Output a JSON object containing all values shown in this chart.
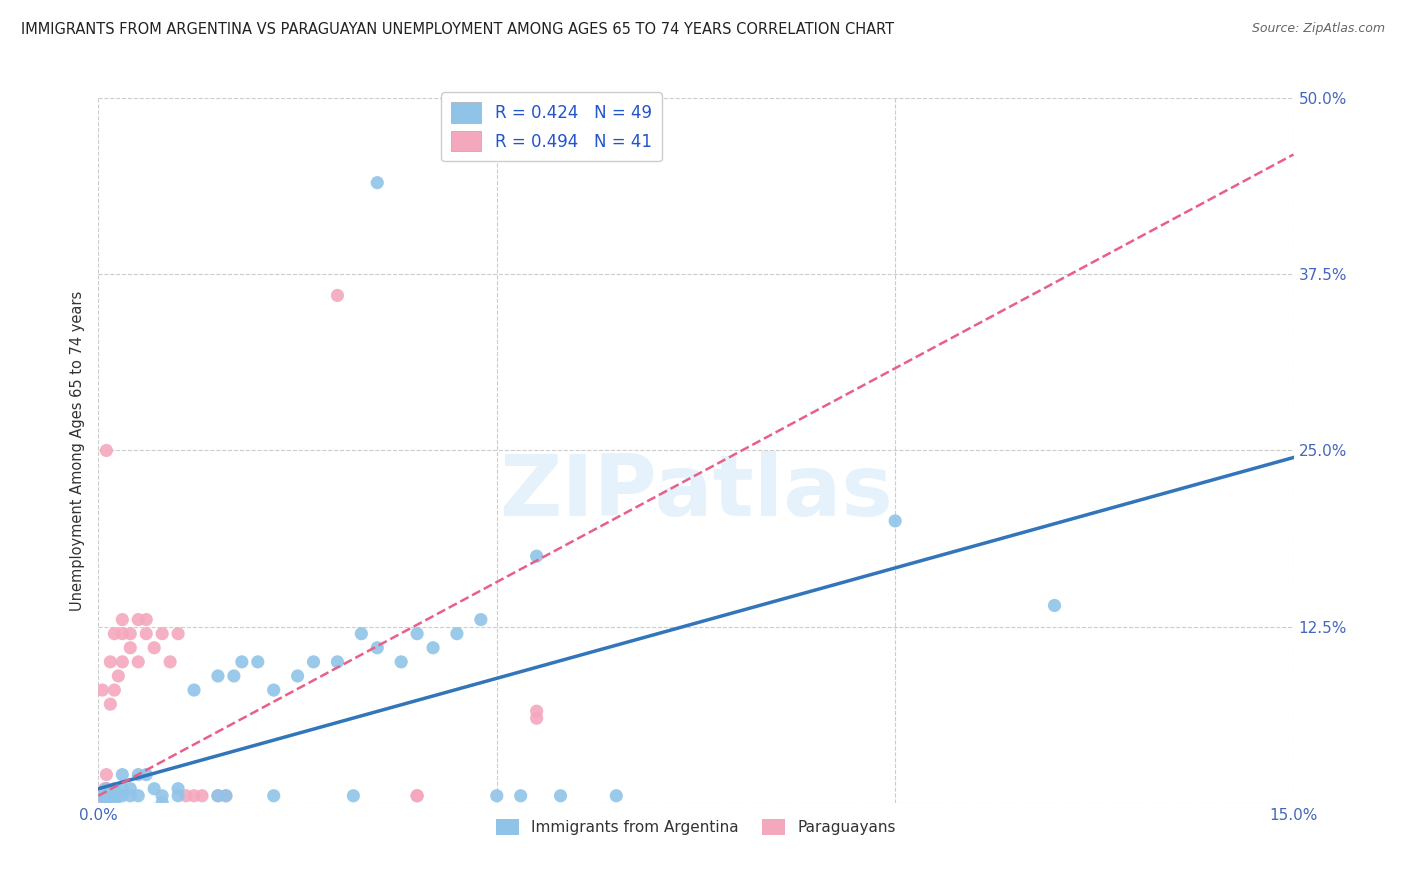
{
  "title": "IMMIGRANTS FROM ARGENTINA VS PARAGUAYAN UNEMPLOYMENT AMONG AGES 65 TO 74 YEARS CORRELATION CHART",
  "source": "Source: ZipAtlas.com",
  "ylabel": "Unemployment Among Ages 65 to 74 years",
  "xlabel_blue": "Immigrants from Argentina",
  "xlabel_pink": "Paraguayans",
  "xlim": [
    0.0,
    0.15
  ],
  "ylim": [
    0.0,
    0.5
  ],
  "xtick_positions": [
    0.0,
    0.05,
    0.1,
    0.15
  ],
  "xtick_labels": [
    "0.0%",
    "",
    "",
    "15.0%"
  ],
  "ytick_positions": [
    0.0,
    0.125,
    0.25,
    0.375,
    0.5
  ],
  "ytick_labels": [
    "",
    "12.5%",
    "25.0%",
    "37.5%",
    "50.0%"
  ],
  "legend_blue_label": "R = 0.424   N = 49",
  "legend_pink_label": "R = 0.494   N = 41",
  "blue_color": "#8fc4e8",
  "pink_color": "#f4a8be",
  "blue_line_color": "#3375bb",
  "pink_line_color": "#e8608a",
  "watermark": "ZIPatlas",
  "blue_line_x": [
    0.0,
    0.15
  ],
  "blue_line_y": [
    0.01,
    0.245
  ],
  "pink_line_x": [
    0.0,
    0.15
  ],
  "pink_line_y": [
    0.005,
    0.46
  ],
  "blue_points": [
    [
      0.0005,
      0.005
    ],
    [
      0.001,
      0.0
    ],
    [
      0.001,
      0.005
    ],
    [
      0.001,
      0.01
    ],
    [
      0.0015,
      0.005
    ],
    [
      0.002,
      0.0
    ],
    [
      0.002,
      0.01
    ],
    [
      0.0025,
      0.005
    ],
    [
      0.003,
      0.005
    ],
    [
      0.003,
      0.01
    ],
    [
      0.003,
      0.02
    ],
    [
      0.004,
      0.01
    ],
    [
      0.004,
      0.005
    ],
    [
      0.005,
      0.02
    ],
    [
      0.005,
      0.005
    ],
    [
      0.006,
      0.02
    ],
    [
      0.007,
      0.01
    ],
    [
      0.008,
      0.0
    ],
    [
      0.008,
      0.005
    ],
    [
      0.01,
      0.005
    ],
    [
      0.01,
      0.01
    ],
    [
      0.012,
      0.08
    ],
    [
      0.015,
      0.09
    ],
    [
      0.015,
      0.005
    ],
    [
      0.016,
      0.005
    ],
    [
      0.017,
      0.09
    ],
    [
      0.018,
      0.1
    ],
    [
      0.02,
      0.1
    ],
    [
      0.022,
      0.08
    ],
    [
      0.022,
      0.005
    ],
    [
      0.025,
      0.09
    ],
    [
      0.027,
      0.1
    ],
    [
      0.03,
      0.1
    ],
    [
      0.032,
      0.005
    ],
    [
      0.033,
      0.12
    ],
    [
      0.035,
      0.11
    ],
    [
      0.038,
      0.1
    ],
    [
      0.04,
      0.12
    ],
    [
      0.042,
      0.11
    ],
    [
      0.045,
      0.12
    ],
    [
      0.048,
      0.13
    ],
    [
      0.05,
      0.005
    ],
    [
      0.053,
      0.005
    ],
    [
      0.035,
      0.44
    ],
    [
      0.055,
      0.175
    ],
    [
      0.058,
      0.005
    ],
    [
      0.065,
      0.005
    ],
    [
      0.1,
      0.2
    ],
    [
      0.12,
      0.14
    ]
  ],
  "pink_points": [
    [
      0.0005,
      0.0
    ],
    [
      0.001,
      0.005
    ],
    [
      0.001,
      0.01
    ],
    [
      0.001,
      0.25
    ],
    [
      0.0015,
      0.07
    ],
    [
      0.0015,
      0.1
    ],
    [
      0.002,
      0.08
    ],
    [
      0.002,
      0.12
    ],
    [
      0.0025,
      0.09
    ],
    [
      0.003,
      0.1
    ],
    [
      0.003,
      0.12
    ],
    [
      0.003,
      0.13
    ],
    [
      0.004,
      0.11
    ],
    [
      0.004,
      0.12
    ],
    [
      0.005,
      0.1
    ],
    [
      0.005,
      0.13
    ],
    [
      0.006,
      0.12
    ],
    [
      0.006,
      0.13
    ],
    [
      0.007,
      0.11
    ],
    [
      0.008,
      0.12
    ],
    [
      0.009,
      0.1
    ],
    [
      0.01,
      0.12
    ],
    [
      0.011,
      0.005
    ],
    [
      0.012,
      0.005
    ],
    [
      0.013,
      0.005
    ],
    [
      0.015,
      0.005
    ],
    [
      0.016,
      0.005
    ],
    [
      0.001,
      0.0
    ],
    [
      0.0005,
      0.005
    ],
    [
      0.0008,
      0.005
    ],
    [
      0.0008,
      0.01
    ],
    [
      0.001,
      0.02
    ],
    [
      0.0015,
      0.005
    ],
    [
      0.0005,
      0.08
    ],
    [
      0.03,
      0.36
    ],
    [
      0.04,
      0.005
    ],
    [
      0.04,
      0.005
    ],
    [
      0.055,
      0.06
    ],
    [
      0.055,
      0.065
    ],
    [
      0.002,
      0.005
    ],
    [
      0.001,
      0.005
    ]
  ]
}
